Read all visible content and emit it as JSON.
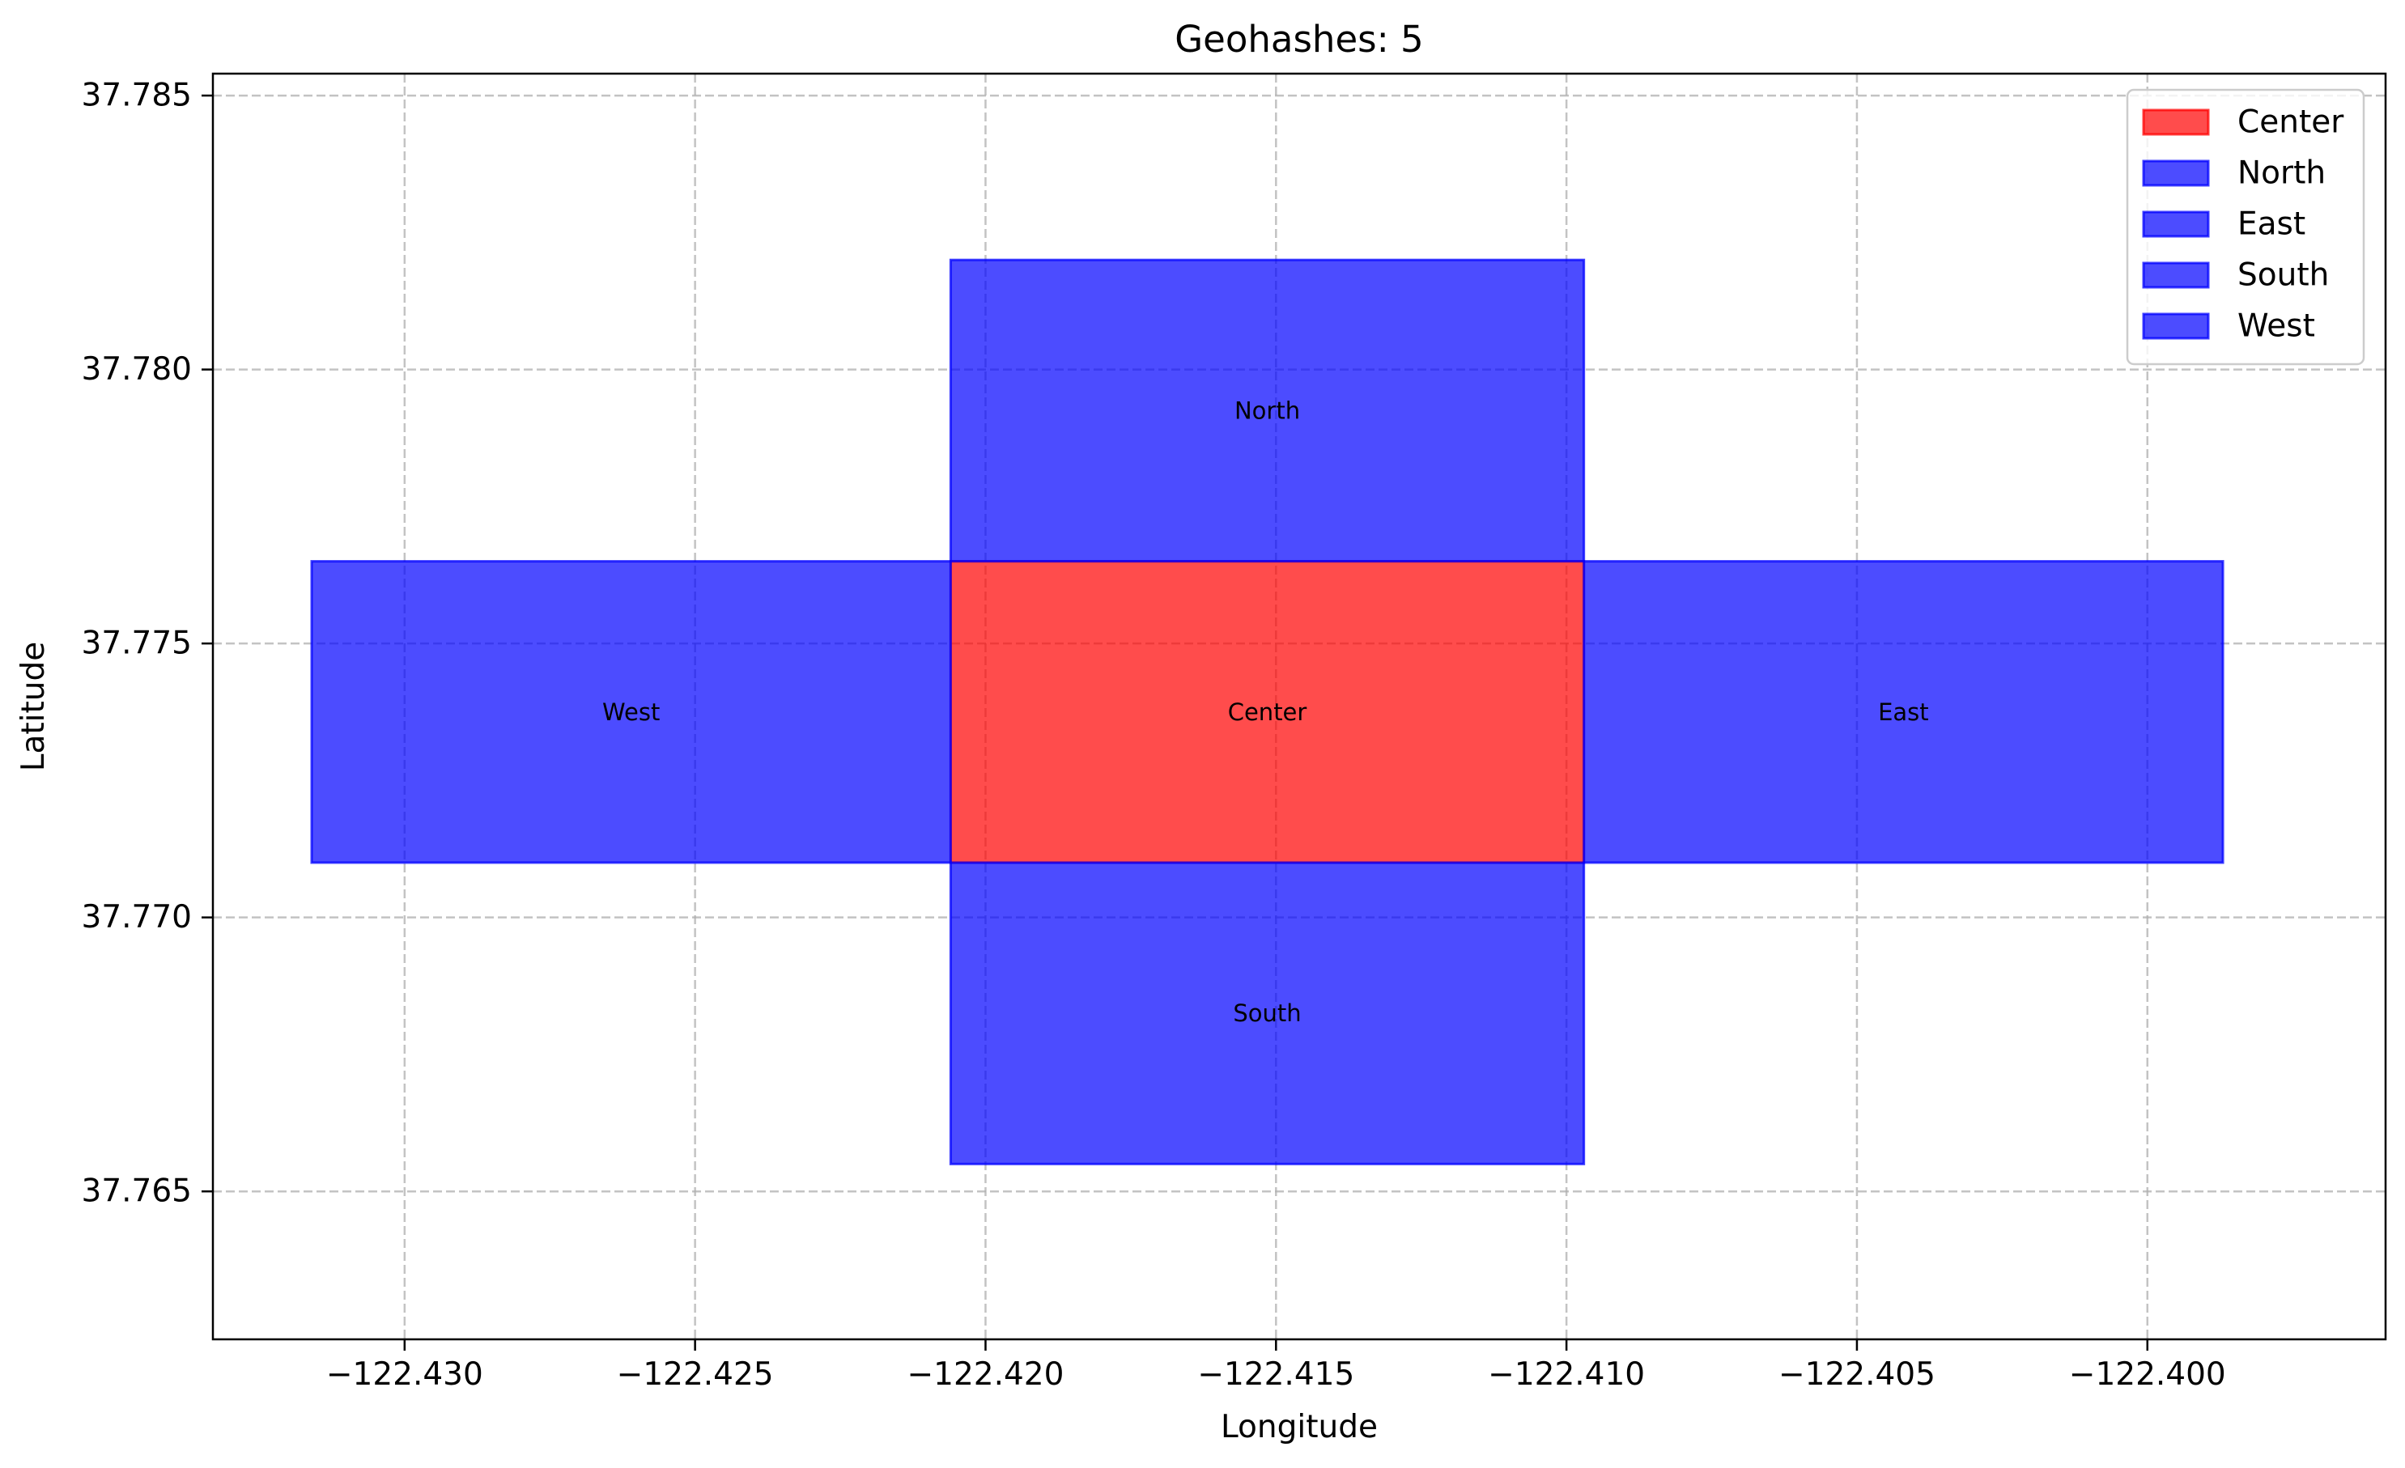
{
  "chart_data": {
    "type": "map",
    "title": "Geohashes: 5",
    "xlabel": "Longitude",
    "ylabel": "Latitude",
    "xlim": [
      -122.4333,
      -122.3959
    ],
    "ylim": [
      37.7623,
      37.7854
    ],
    "xticks": [
      {
        "value": -122.43,
        "label": "−122.430"
      },
      {
        "value": -122.425,
        "label": "−122.425"
      },
      {
        "value": -122.42,
        "label": "−122.420"
      },
      {
        "value": -122.415,
        "label": "−122.415"
      },
      {
        "value": -122.41,
        "label": "−122.410"
      },
      {
        "value": -122.405,
        "label": "−122.405"
      },
      {
        "value": -122.4,
        "label": "−122.400"
      }
    ],
    "yticks": [
      {
        "value": 37.765,
        "label": "37.765"
      },
      {
        "value": 37.77,
        "label": "37.770"
      },
      {
        "value": 37.775,
        "label": "37.775"
      },
      {
        "value": 37.78,
        "label": "37.780"
      },
      {
        "value": 37.785,
        "label": "37.785"
      }
    ],
    "grid": true,
    "legend_position": "top-right",
    "cells": [
      {
        "name": "Center",
        "label": "Center",
        "color": "#ff0000",
        "lon_min": -122.4206,
        "lon_max": -122.4097,
        "lat_min": 37.771,
        "lat_max": 37.7765
      },
      {
        "name": "North",
        "label": "North",
        "color": "#0000ff",
        "lon_min": -122.4206,
        "lon_max": -122.4097,
        "lat_min": 37.7765,
        "lat_max": 37.782
      },
      {
        "name": "East",
        "label": "East",
        "color": "#0000ff",
        "lon_min": -122.4097,
        "lon_max": -122.3987,
        "lat_min": 37.771,
        "lat_max": 37.7765
      },
      {
        "name": "South",
        "label": "South",
        "color": "#0000ff",
        "lon_min": -122.4206,
        "lon_max": -122.4097,
        "lat_min": 37.7655,
        "lat_max": 37.771
      },
      {
        "name": "West",
        "label": "West",
        "color": "#0000ff",
        "lon_min": -122.4316,
        "lon_max": -122.4206,
        "lat_min": 37.771,
        "lat_max": 37.7765
      }
    ],
    "fill_opacity": 0.7
  }
}
